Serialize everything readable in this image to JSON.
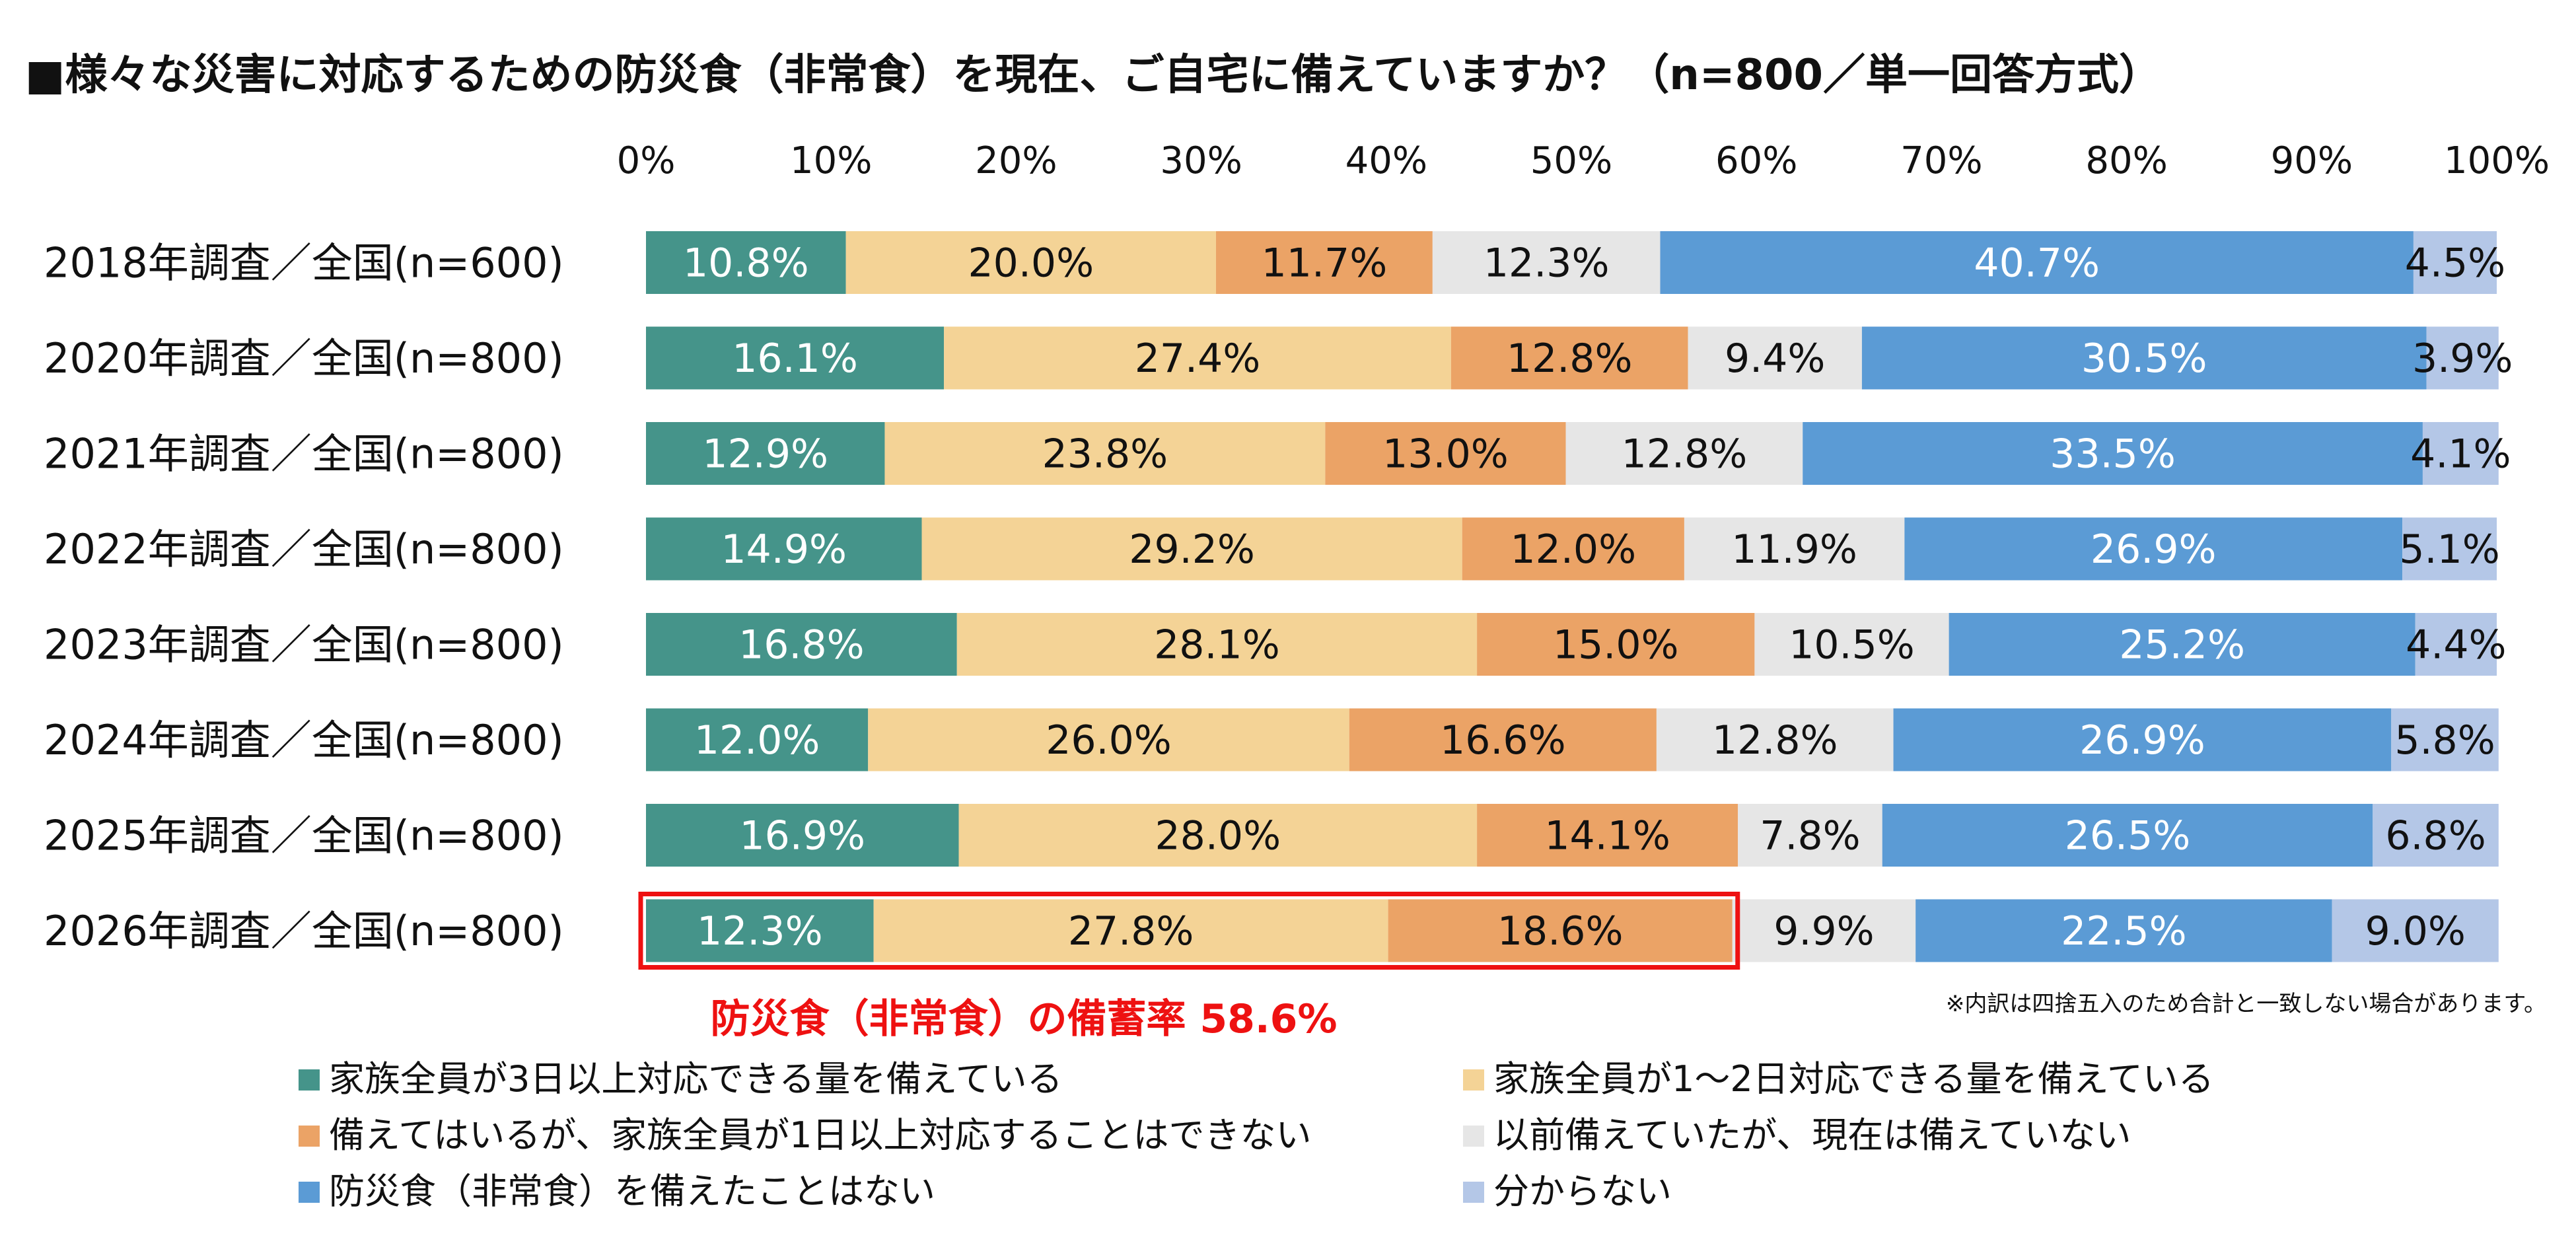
{
  "chart_data": {
    "type": "bar",
    "orientation": "horizontal",
    "stacked": true,
    "title": "■様々な災害に対応するための防災食（非常食）を現在、ご自宅に備えていますか？（n=800／単一回答方式）",
    "xlim": [
      0,
      100
    ],
    "x_ticks": [
      "0%",
      "10%",
      "20%",
      "30%",
      "40%",
      "50%",
      "60%",
      "70%",
      "80%",
      "90%",
      "100%"
    ],
    "legend_position": "bottom",
    "categories": [
      "2018年調査／全国(n=600)",
      "2020年調査／全国(n=800)",
      "2021年調査／全国(n=800)",
      "2022年調査／全国(n=800)",
      "2023年調査／全国(n=800)",
      "2024年調査／全国(n=800)",
      "2025年調査／全国(n=800)",
      "2026年調査／全国(n=800)"
    ],
    "series": [
      {
        "name": "家族全員が3日以上対応できる量を備えている",
        "color": "#45948a",
        "label_color": "#ffffff",
        "values": [
          10.8,
          16.1,
          12.9,
          14.9,
          16.8,
          12.0,
          16.9,
          12.3
        ]
      },
      {
        "name": "家族全員が1～2日対応できる量を備えている",
        "color": "#f4d396",
        "label_color": "#111111",
        "values": [
          20.0,
          27.4,
          23.8,
          29.2,
          28.1,
          26.0,
          28.0,
          27.8
        ]
      },
      {
        "name": "備えてはいるが、家族全員が1日以上対応することはできない",
        "color": "#eba366",
        "label_color": "#111111",
        "values": [
          11.7,
          12.8,
          13.0,
          12.0,
          15.0,
          16.6,
          14.1,
          18.6
        ]
      },
      {
        "name": "以前備えていたが、現在は備えていない",
        "color": "#e6e6e6",
        "label_color": "#111111",
        "values": [
          12.3,
          9.4,
          12.8,
          11.9,
          10.5,
          12.8,
          7.8,
          9.9
        ]
      },
      {
        "name": "防災食（非常食）を備えたことはない",
        "color": "#5b9bd5",
        "label_color": "#ffffff",
        "values": [
          40.7,
          30.5,
          33.5,
          26.9,
          25.2,
          26.9,
          26.5,
          22.5
        ]
      },
      {
        "name": "分からない",
        "color": "#b4c7e7",
        "label_color": "#111111",
        "values": [
          4.5,
          3.9,
          4.1,
          5.1,
          4.4,
          5.8,
          6.8,
          9.0
        ]
      }
    ],
    "highlight": {
      "category_index": 7,
      "series_count": 3,
      "color": "#ee1111"
    },
    "annotation": "防災食（非常食）の備蓄率 58.6%",
    "footnote": "※内訳は四捨五入のため合計と一致しない場合があります。"
  }
}
